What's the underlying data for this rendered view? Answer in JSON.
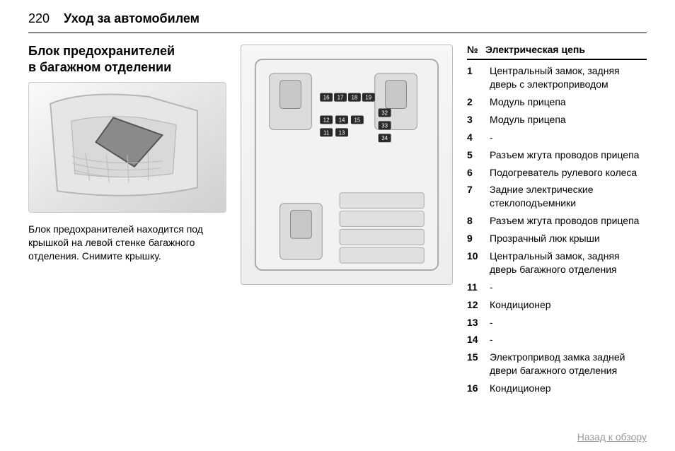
{
  "page_number": "220",
  "chapter_title": "Уход за автомобилем",
  "section_title_line1": "Блок предохранителей",
  "section_title_line2": "в багажном отделении",
  "body_text": "Блок предохранителей находится под крышкой на левой стенке багажного отделения. Снимите крышку.",
  "table": {
    "header_num": "№",
    "header_desc": "Электрическая цепь",
    "rows": [
      {
        "num": "1",
        "desc": "Центральный замок, задняя дверь с электроприводом"
      },
      {
        "num": "2",
        "desc": "Модуль прицепа"
      },
      {
        "num": "3",
        "desc": "Модуль прицепа"
      },
      {
        "num": "4",
        "desc": "-"
      },
      {
        "num": "5",
        "desc": "Разъем жгута проводов прицепа"
      },
      {
        "num": "6",
        "desc": "Подогреватель рулевого колеса"
      },
      {
        "num": "7",
        "desc": "Задние электрические стеклоподъемники"
      },
      {
        "num": "8",
        "desc": "Разъем жгута проводов прицепа"
      },
      {
        "num": "9",
        "desc": "Прозрачный люк крыши"
      },
      {
        "num": "10",
        "desc": "Центральный замок, задняя дверь багажного отделения"
      },
      {
        "num": "11",
        "desc": "-"
      },
      {
        "num": "12",
        "desc": "Кондиционер"
      },
      {
        "num": "13",
        "desc": "-"
      },
      {
        "num": "14",
        "desc": "-"
      },
      {
        "num": "15",
        "desc": "Электропривод замка задней двери багажного отделения"
      },
      {
        "num": "16",
        "desc": "Кондиционер"
      }
    ]
  },
  "fuse_labels": {
    "top_row": [
      "16",
      "17",
      "18",
      "19"
    ],
    "second_row": [
      "12",
      "14",
      "15"
    ],
    "third_row": [
      "11",
      "13"
    ],
    "right_col": [
      "32",
      "33",
      "34"
    ]
  },
  "footer_link": "Назад к обзору",
  "colors": {
    "text": "#000000",
    "pill_bg": "#2a2a2a",
    "pill_fg": "#ffffff",
    "footer": "#9a9a9a",
    "illus_bg": "#ececec",
    "diagram_bg": "#f1f1f1"
  }
}
